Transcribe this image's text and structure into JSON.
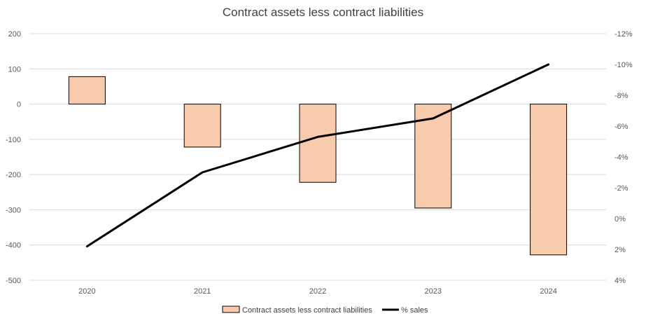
{
  "chart_data": {
    "type": "bar",
    "title": "Contract assets less contract liabilities",
    "categories": [
      "2020",
      "2021",
      "2022",
      "2023",
      "2024"
    ],
    "series": [
      {
        "name": "Contract assets less contract liabilities",
        "type": "bar",
        "axis": "left",
        "values": [
          78,
          -122,
          -222,
          -295,
          -428
        ],
        "color": "#F8CBAD",
        "stroke": "#000000"
      },
      {
        "name": "% sales",
        "type": "line",
        "axis": "right",
        "values": [
          1.8,
          -3.0,
          -5.3,
          -6.5,
          -10.0
        ],
        "color": "#000000"
      }
    ],
    "left_axis": {
      "ylim": [
        -500,
        200
      ],
      "ticks": [
        200,
        100,
        0,
        -100,
        -200,
        -300,
        -400,
        -500
      ],
      "tick_labels": [
        "200",
        "100",
        "0",
        "-100",
        "-200",
        "-300",
        "-400",
        "-500"
      ]
    },
    "right_axis": {
      "ylim": [
        4,
        -12
      ],
      "inverted": true,
      "ticks": [
        -12,
        -10,
        -8,
        -6,
        -4,
        -2,
        0,
        2,
        4
      ],
      "tick_labels": [
        "-12%",
        "-10%",
        "-8%",
        "-6%",
        "-4%",
        "-2%",
        "0%",
        "2%",
        "4%"
      ]
    },
    "grid": true,
    "legend": {
      "position": "bottom",
      "entries": [
        "Contract assets less contract liabilities",
        "% sales"
      ]
    }
  }
}
